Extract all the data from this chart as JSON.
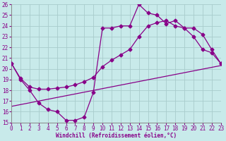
{
  "bg_color": "#c8eaea",
  "grid_color": "#a8cccc",
  "line_color": "#880088",
  "xlabel": "Windchill (Refroidissement éolien,°C)",
  "xlim": [
    0,
    23
  ],
  "ylim": [
    15,
    26
  ],
  "xticks": [
    0,
    1,
    2,
    3,
    4,
    5,
    6,
    7,
    8,
    9,
    10,
    11,
    12,
    13,
    14,
    15,
    16,
    17,
    18,
    19,
    20,
    21,
    22,
    23
  ],
  "yticks": [
    15,
    16,
    17,
    18,
    19,
    20,
    21,
    22,
    23,
    24,
    25,
    26
  ],
  "line1_x": [
    0,
    1,
    2,
    3,
    4,
    5,
    6,
    7,
    8,
    9,
    10,
    11,
    12,
    13,
    14,
    15,
    16,
    17,
    18,
    19,
    20,
    21,
    22,
    23
  ],
  "line1_y": [
    20.5,
    19.0,
    18.0,
    16.8,
    16.2,
    16.0,
    15.2,
    15.2,
    15.5,
    17.8,
    23.8,
    23.8,
    24.0,
    24.0,
    26.0,
    25.2,
    25.0,
    24.2,
    24.5,
    23.8,
    23.0,
    21.8,
    21.5,
    20.5
  ],
  "line2_x": [
    0,
    1,
    2,
    3,
    4,
    5,
    6,
    7,
    8,
    9,
    10,
    11,
    12,
    13,
    14,
    15,
    16,
    17,
    18,
    19,
    20,
    21,
    22,
    23
  ],
  "line2_y": [
    20.5,
    19.1,
    18.3,
    18.1,
    18.1,
    18.2,
    18.3,
    18.5,
    18.8,
    19.2,
    20.2,
    20.8,
    21.3,
    21.8,
    23.0,
    24.0,
    24.3,
    24.5,
    24.0,
    23.8,
    23.8,
    23.2,
    21.8,
    20.5
  ],
  "line3_x": [
    0,
    23
  ],
  "line3_y": [
    16.5,
    20.3
  ]
}
